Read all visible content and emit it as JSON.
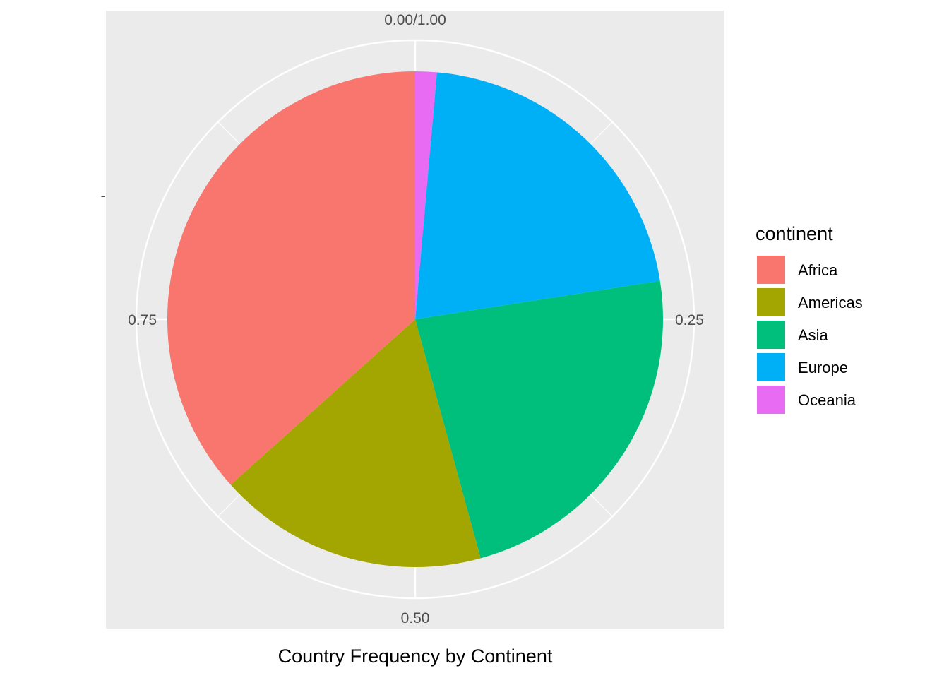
{
  "chart_data": {
    "type": "pie",
    "title": "",
    "xlabel": "Country Frequency by Continent",
    "ylabel": "",
    "y_axis_tick_mark": "-",
    "legend_title": "continent",
    "legend_position": "right",
    "categories": [
      "Africa",
      "Americas",
      "Asia",
      "Europe",
      "Oceania"
    ],
    "values": [
      0.366,
      0.176,
      0.232,
      0.211,
      0.014
    ],
    "colors": [
      "#F8766D",
      "#A3A500",
      "#00BF7D",
      "#00B0F6",
      "#E76BF3"
    ],
    "stack_order": [
      "Oceania",
      "Europe",
      "Asia",
      "Americas",
      "Africa"
    ],
    "direction": "clockwise",
    "theta_axis": {
      "ticks": [
        0,
        0.25,
        0.5,
        0.75
      ],
      "tick_labels": [
        "0.00/1.00",
        "0.25",
        "0.50",
        "0.75"
      ],
      "minor_ticks": [
        0.125,
        0.375,
        0.625,
        0.875
      ],
      "range": [
        0,
        1
      ]
    },
    "grid": true,
    "panel_background": "#EBEBEB",
    "grid_color": "#FFFFFF"
  }
}
